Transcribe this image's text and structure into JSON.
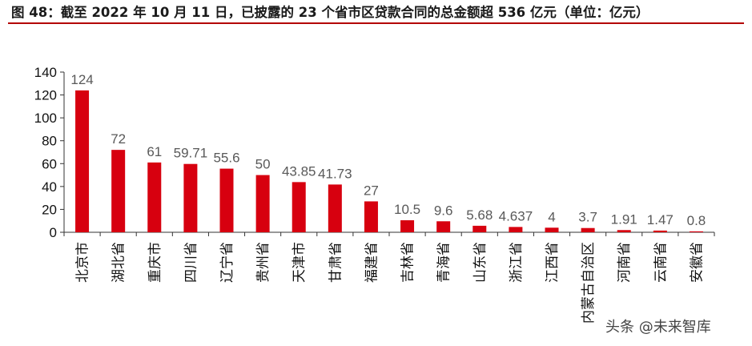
{
  "header": {
    "title": "图 48：截至 2022 年 10 月 11 日，已披露的 23 个省市区贷款合同的总金额超 536 亿元（单位：亿元）"
  },
  "watermark": "头条 @未来智库",
  "colors": {
    "bar": "#d7000f",
    "title_rule": "#b30000",
    "axis": "#333333"
  },
  "chart_data": {
    "type": "bar",
    "categories": [
      "北京市",
      "湖北省",
      "重庆市",
      "四川省",
      "辽宁省",
      "贵州省",
      "天津市",
      "甘肃省",
      "福建省",
      "吉林省",
      "青海省",
      "山东省",
      "浙江省",
      "江西省",
      "内蒙古自治区",
      "河南省",
      "云南省",
      "安徽省"
    ],
    "values": [
      124,
      72,
      61,
      59.71,
      55.6,
      50,
      43.85,
      41.73,
      27,
      10.5,
      9.6,
      5.68,
      4.637,
      4,
      3.7,
      1.91,
      1.47,
      0.8
    ],
    "value_labels": [
      "124",
      "72",
      "61",
      "59.71",
      "55.6",
      "50",
      "43.85",
      "41.73",
      "27",
      "10.5",
      "9.6",
      "5.68",
      "4.637",
      "4",
      "3.7",
      "1.91",
      "1.47",
      "0.8"
    ],
    "ylim": [
      0,
      140
    ],
    "yticks": [
      "0",
      "20",
      "40",
      "60",
      "80",
      "100",
      "120",
      "140"
    ],
    "grid": false,
    "legend": "none"
  }
}
